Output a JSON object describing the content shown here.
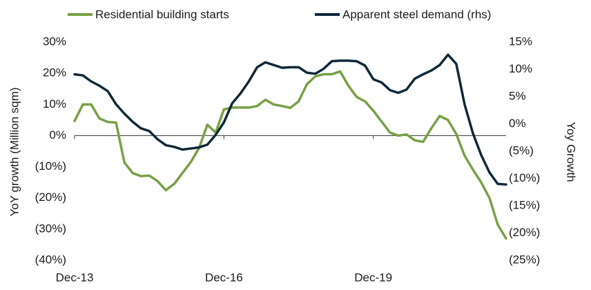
{
  "chart_data": {
    "type": "line",
    "categories": [
      "Dec-13",
      null,
      null,
      null,
      null,
      null,
      null,
      null,
      null,
      null,
      null,
      null,
      null,
      null,
      null,
      null,
      null,
      null,
      "Dec-16",
      null,
      null,
      null,
      null,
      null,
      null,
      null,
      null,
      null,
      null,
      null,
      null,
      null,
      null,
      null,
      null,
      null,
      "Dec-19",
      null,
      null,
      null,
      null,
      null,
      null,
      null,
      null,
      null,
      null,
      null,
      null,
      null,
      null,
      null,
      null
    ],
    "series": [
      {
        "name": "Residential building starts",
        "color": "#76a145",
        "axis": "y",
        "values": [
          4.7,
          10,
          10,
          5.5,
          4.4,
          4.2,
          -8.6,
          -12,
          -13,
          -12.8,
          -14.6,
          -17.5,
          -15.5,
          -12,
          -8.5,
          -4,
          3.5,
          1,
          8.4,
          9,
          9,
          9,
          9.5,
          11.5,
          10,
          9.5,
          8.9,
          11,
          16.5,
          19,
          19.7,
          19.7,
          20.6,
          16,
          12.4,
          11,
          8,
          4.5,
          1,
          0,
          0.4,
          -1.5,
          -2,
          2.4,
          6.3,
          5,
          0.5,
          -6.4,
          -10.9,
          -15,
          -20,
          -28.6,
          -33
        ]
      },
      {
        "name": "Apparent steel demand (rhs)",
        "color": "#0e2838",
        "axis": "y2",
        "values": [
          9.1,
          8.9,
          7.8,
          7,
          6,
          3.6,
          1.9,
          0.4,
          -0.8,
          -1.3,
          -2.8,
          -3.9,
          -4.2,
          -4.7,
          -4.5,
          -4.3,
          -3.8,
          -2,
          0.3,
          3.8,
          5.6,
          7.8,
          10.4,
          11.3,
          10.8,
          10.3,
          10.4,
          10.4,
          9.4,
          9.2,
          10.1,
          11.5,
          11.6,
          11.6,
          11.5,
          10.7,
          8.2,
          7.6,
          6.2,
          5.7,
          6.3,
          8.3,
          9.1,
          9.8,
          10.8,
          12.7,
          11,
          3.6,
          -1.7,
          -5.7,
          -8.9,
          -11,
          -11.1
        ]
      }
    ],
    "ylabel": "YoY growth (Million sqm)",
    "y2label": "Yoy Growth",
    "ylim": [
      -40,
      30
    ],
    "yticks": [
      {
        "value": -40,
        "label": "(40%)"
      },
      {
        "value": -30,
        "label": "(30%)"
      },
      {
        "value": -20,
        "label": "(20%)"
      },
      {
        "value": -10,
        "label": "(10%)"
      },
      {
        "value": 0,
        "label": "0%"
      },
      {
        "value": 10,
        "label": "10%"
      },
      {
        "value": 20,
        "label": "20%"
      },
      {
        "value": 30,
        "label": "30%"
      }
    ],
    "y2lim": [
      -25,
      15
    ],
    "y2ticks": [
      {
        "value": -25,
        "label": "(25%)"
      },
      {
        "value": -20,
        "label": "(20%)"
      },
      {
        "value": -15,
        "label": "(15%)"
      },
      {
        "value": -10,
        "label": "(10%)"
      },
      {
        "value": -5,
        "label": "(5%)"
      },
      {
        "value": 0,
        "label": "0%"
      },
      {
        "value": 5,
        "label": "5%"
      },
      {
        "value": 10,
        "label": "10%"
      },
      {
        "value": 15,
        "label": "15%"
      }
    ],
    "legend": "top"
  }
}
